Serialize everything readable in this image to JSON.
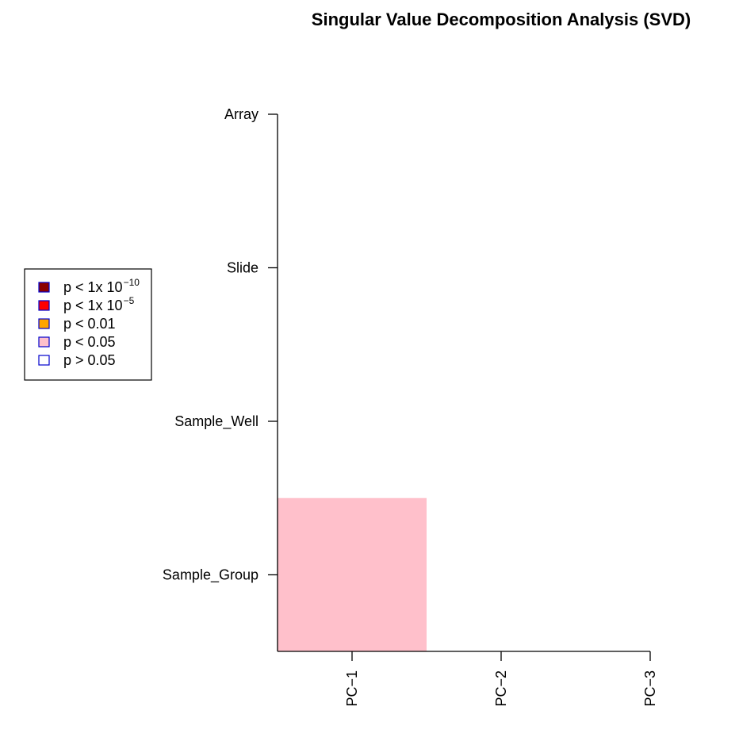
{
  "chart_data": {
    "type": "heatmap",
    "title": "Singular Value Decomposition Analysis (SVD)",
    "xlabel": "",
    "ylabel": "",
    "x_categories": [
      "PC−1",
      "PC−2",
      "PC−3"
    ],
    "y_categories": [
      "Array",
      "Slide",
      "Sample_Well",
      "Sample_Group"
    ],
    "cells": [
      {
        "x": "PC−1",
        "y": "Sample_Group",
        "level": "p < 0.05"
      }
    ],
    "legend": {
      "placement": "left",
      "entries": [
        {
          "label": "p < 1x 10",
          "sup": "−10",
          "fill": "#8B0000",
          "border": "#0000CD"
        },
        {
          "label": "p < 1x 10",
          "sup": "−5",
          "fill": "#FF0000",
          "border": "#0000CD"
        },
        {
          "label": "p < 0.01",
          "sup": "",
          "fill": "#FFA500",
          "border": "#0000CD"
        },
        {
          "label": "p < 0.05",
          "sup": "",
          "fill": "#FFC0CB",
          "border": "#0000CD"
        },
        {
          "label": "p > 0.05",
          "sup": "",
          "fill": "#FFFFFF",
          "border": "#0000CD"
        }
      ]
    },
    "grid": false
  }
}
